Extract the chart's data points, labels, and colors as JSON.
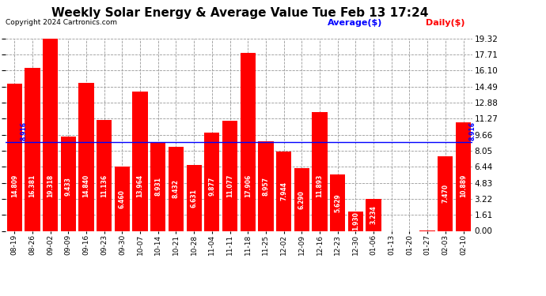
{
  "title": "Weekly Solar Energy & Average Value Tue Feb 13 17:24",
  "copyright": "Copyright 2024 Cartronics.com",
  "legend_avg": "Average($)",
  "legend_daily": "Daily($)",
  "categories": [
    "08-19",
    "08-26",
    "09-02",
    "09-09",
    "09-16",
    "09-23",
    "09-30",
    "10-07",
    "10-14",
    "10-21",
    "10-28",
    "11-04",
    "11-11",
    "11-18",
    "11-25",
    "12-02",
    "12-09",
    "12-16",
    "12-23",
    "12-30",
    "01-06",
    "01-13",
    "01-20",
    "01-27",
    "02-03",
    "02-10"
  ],
  "values": [
    14.809,
    16.381,
    19.318,
    9.433,
    14.84,
    11.136,
    6.46,
    13.964,
    8.931,
    8.432,
    6.631,
    9.877,
    11.077,
    17.906,
    8.957,
    7.944,
    6.29,
    11.893,
    5.629,
    1.93,
    3.234,
    0.0,
    0.0,
    0.013,
    7.47,
    10.889
  ],
  "average_value": 8.916,
  "bar_color": "#ff0000",
  "avg_line_color": "#0000ff",
  "background_color": "#ffffff",
  "plot_bg_color": "#ffffff",
  "grid_color": "#999999",
  "text_color_bar": "#ffffff",
  "yticks": [
    0.0,
    1.61,
    3.22,
    4.83,
    6.44,
    8.05,
    9.66,
    11.27,
    12.88,
    14.49,
    16.1,
    17.71,
    19.32
  ],
  "ymax": 19.32,
  "ymin": 0.0,
  "title_fontsize": 11,
  "copyright_fontsize": 6.5,
  "legend_fontsize": 8,
  "bar_label_fontsize": 5.5,
  "tick_fontsize": 6.5,
  "ytick_fontsize": 7.5,
  "avg_label_fontsize": 5.5
}
